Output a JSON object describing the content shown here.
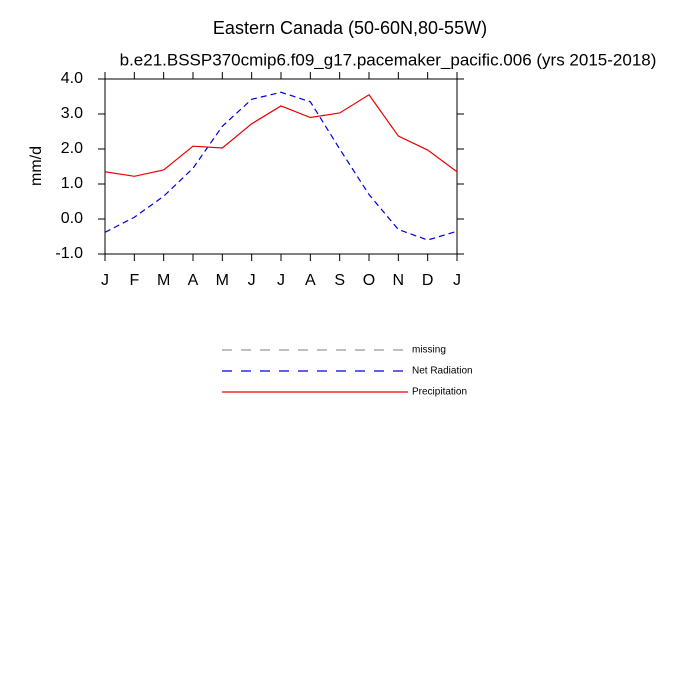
{
  "chart_data": {
    "type": "line",
    "title": "Eastern Canada (50-60N,80-55W)",
    "subtitle": "b.e21.BSSP370cmip6.f09_g17.pacemaker_pacific.006 (yrs 2015-2018)",
    "ylabel": "mm/d",
    "categories": [
      "J",
      "F",
      "M",
      "A",
      "M",
      "J",
      "J",
      "A",
      "S",
      "O",
      "N",
      "D",
      "J"
    ],
    "series": [
      {
        "name": "missing",
        "color": "#999999",
        "dashed": true,
        "values": [
          null,
          null,
          null,
          null,
          null,
          null,
          null,
          null,
          null,
          null,
          null,
          null,
          null
        ]
      },
      {
        "name": "Net Radiation",
        "color": "#0000dd",
        "dashed": true,
        "values": [
          -0.38,
          0.05,
          0.65,
          1.45,
          2.65,
          3.42,
          3.62,
          3.35,
          2.0,
          0.7,
          -0.3,
          -0.6,
          -0.35
        ]
      },
      {
        "name": "Precipitation",
        "color": "#ee0000",
        "dashed": false,
        "values": [
          1.35,
          1.22,
          1.4,
          2.08,
          2.03,
          2.72,
          3.23,
          2.9,
          3.03,
          3.55,
          2.37,
          1.97,
          1.35
        ]
      }
    ],
    "ylim": [
      -1,
      4
    ],
    "yticks": [
      {
        "value": -1,
        "label": "-1.0"
      },
      {
        "value": 0,
        "label": "0.0"
      },
      {
        "value": 1,
        "label": "1.0"
      },
      {
        "value": 2,
        "label": "2.0"
      },
      {
        "value": 3,
        "label": "3.0"
      },
      {
        "value": 4,
        "label": "4.0"
      }
    ],
    "grid": false
  }
}
